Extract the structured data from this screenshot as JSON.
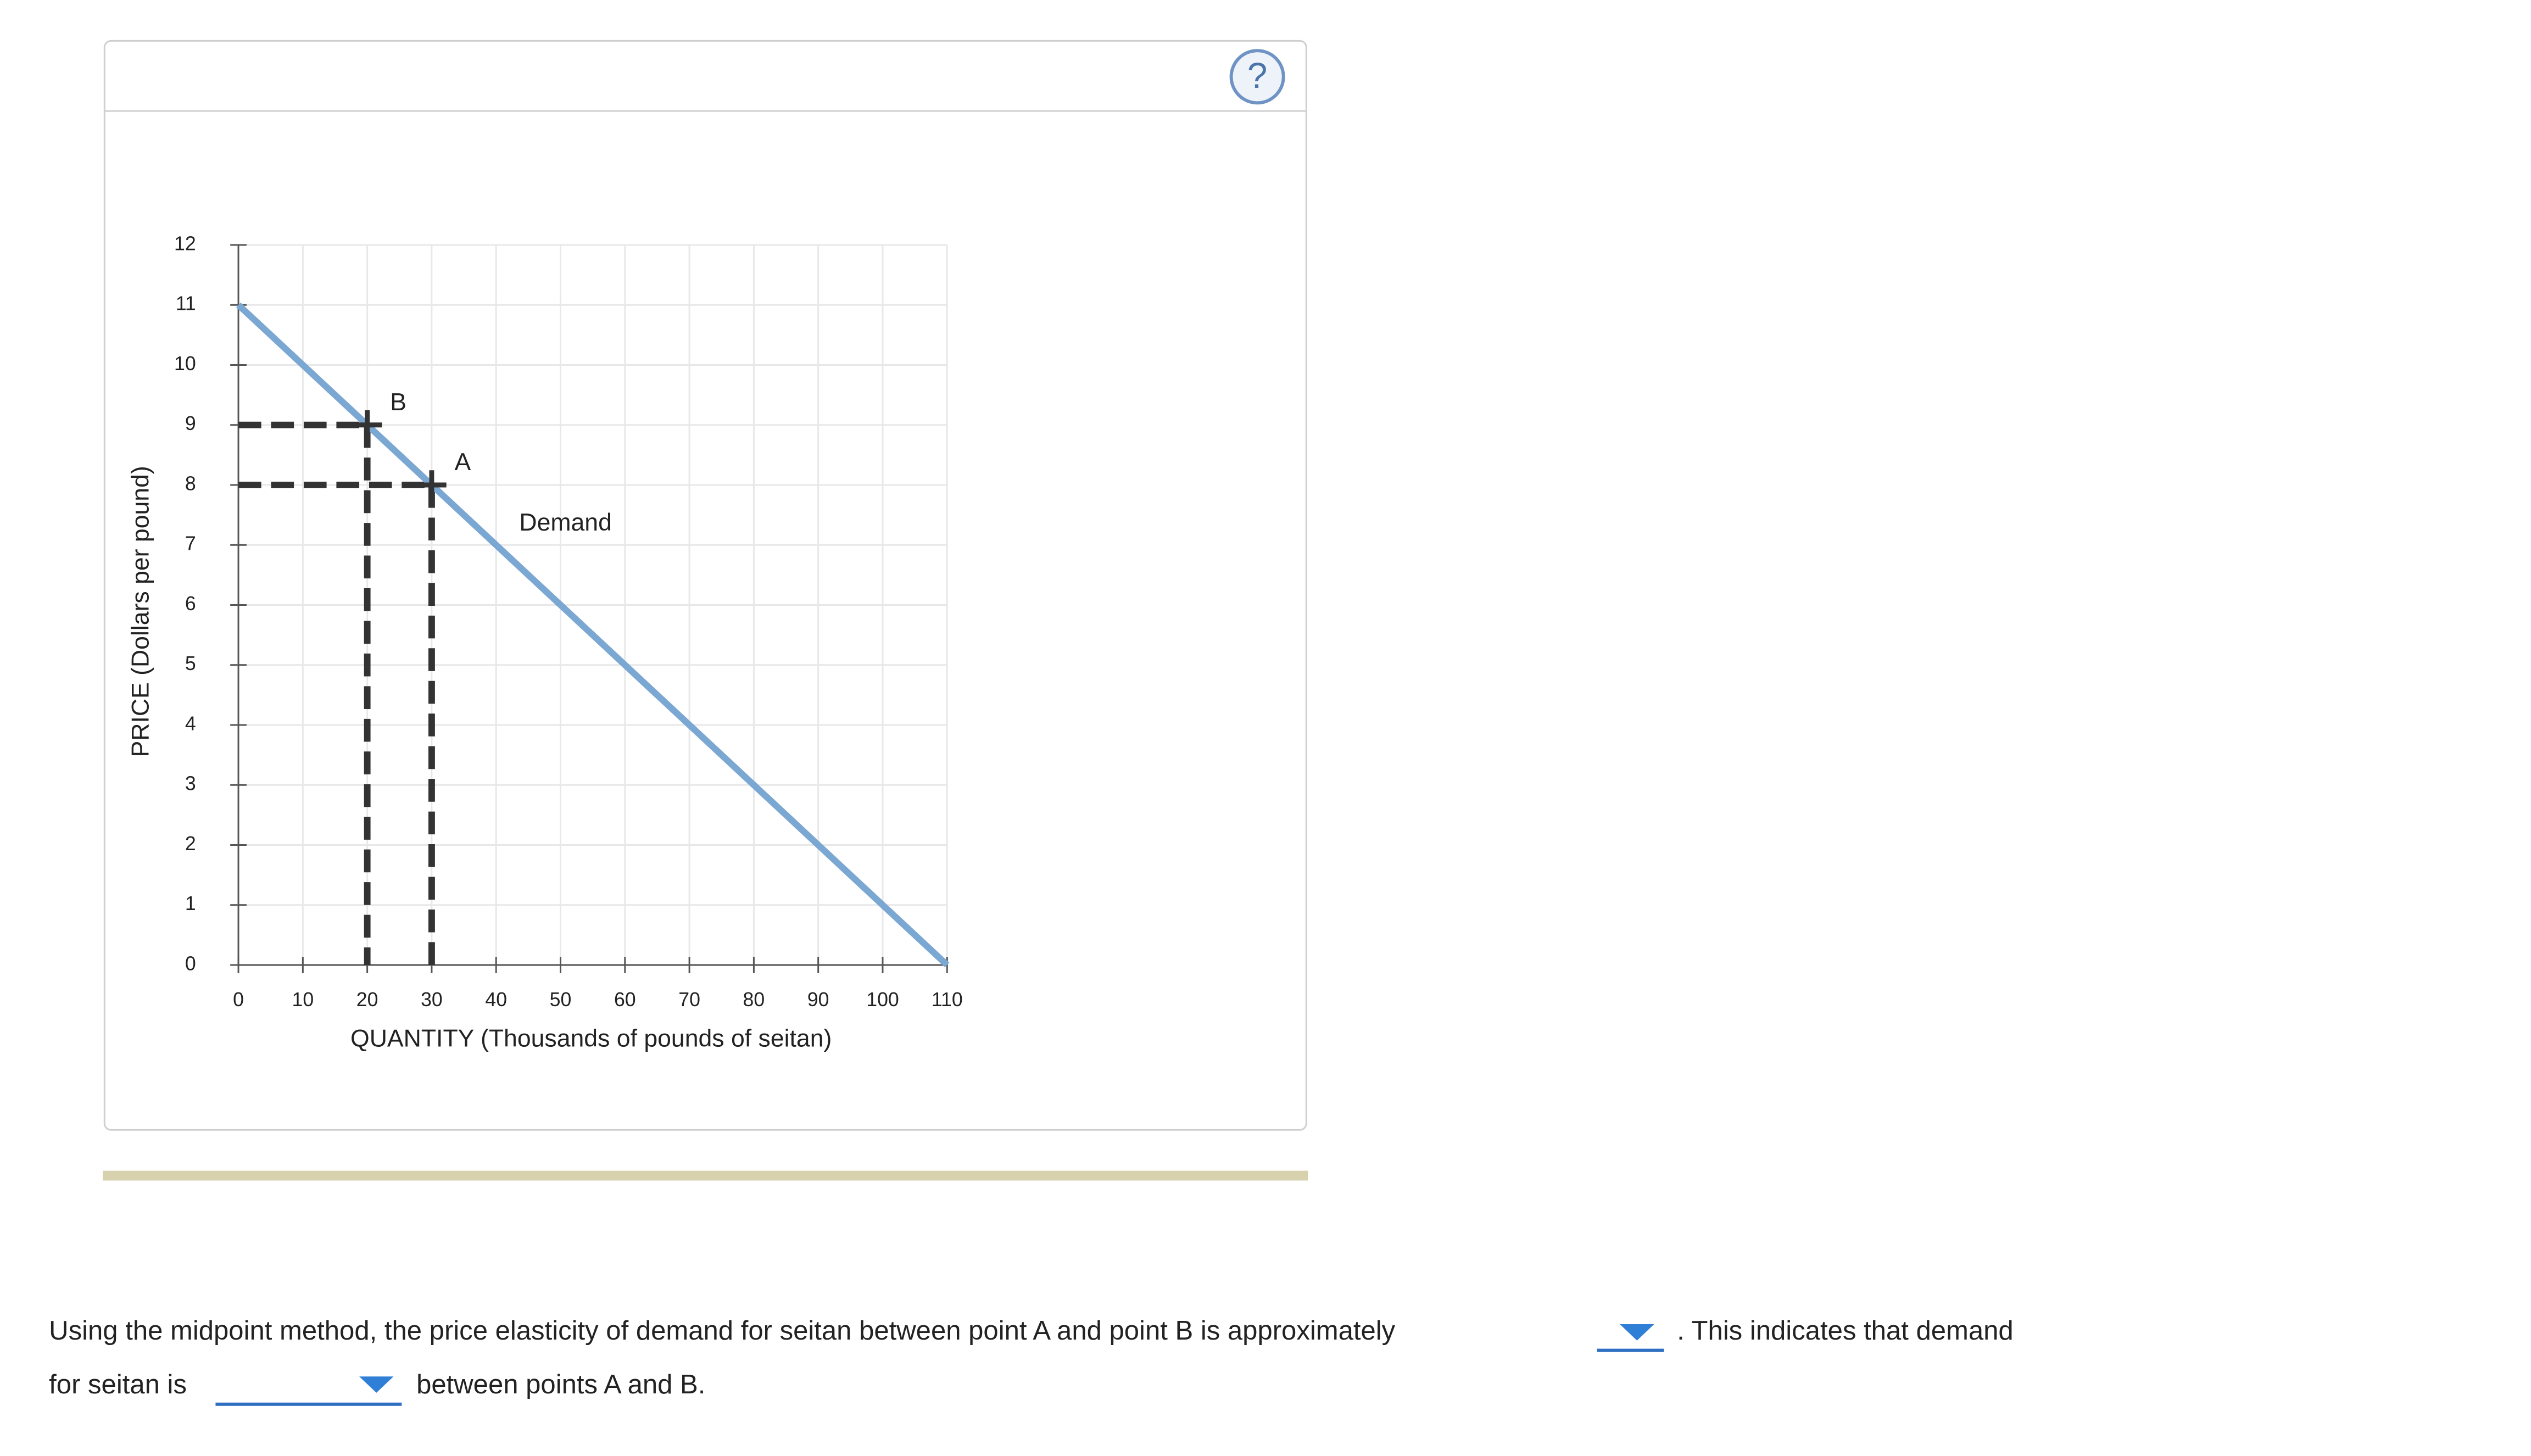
{
  "help_icon": "?",
  "chart_data": {
    "type": "line",
    "xlabel": "QUANTITY (Thousands of pounds of seitan)",
    "ylabel": "PRICE (Dollars per pound)",
    "xlim": [
      0,
      110
    ],
    "xticks": [
      0,
      10,
      20,
      30,
      40,
      50,
      60,
      70,
      80,
      90,
      100,
      110
    ],
    "ylim": [
      0,
      12
    ],
    "yticks": [
      0,
      1,
      2,
      3,
      4,
      5,
      6,
      7,
      8,
      9,
      10,
      11,
      12
    ],
    "grid": true,
    "series": [
      {
        "name": "Demand",
        "color": "#7ba7d3",
        "x": [
          0,
          110
        ],
        "values": [
          11,
          0
        ]
      }
    ],
    "points": [
      {
        "label": "A",
        "x": 30,
        "y": 8
      },
      {
        "label": "B",
        "x": 20,
        "y": 9
      }
    ]
  },
  "question": {
    "line1": "Using the midpoint method, the price elasticity of demand for seitan between point A and point B is approximately",
    "line1_end": ". This indicates that demand",
    "line2": "for seitan is",
    "line2_end": "between points A and B."
  }
}
